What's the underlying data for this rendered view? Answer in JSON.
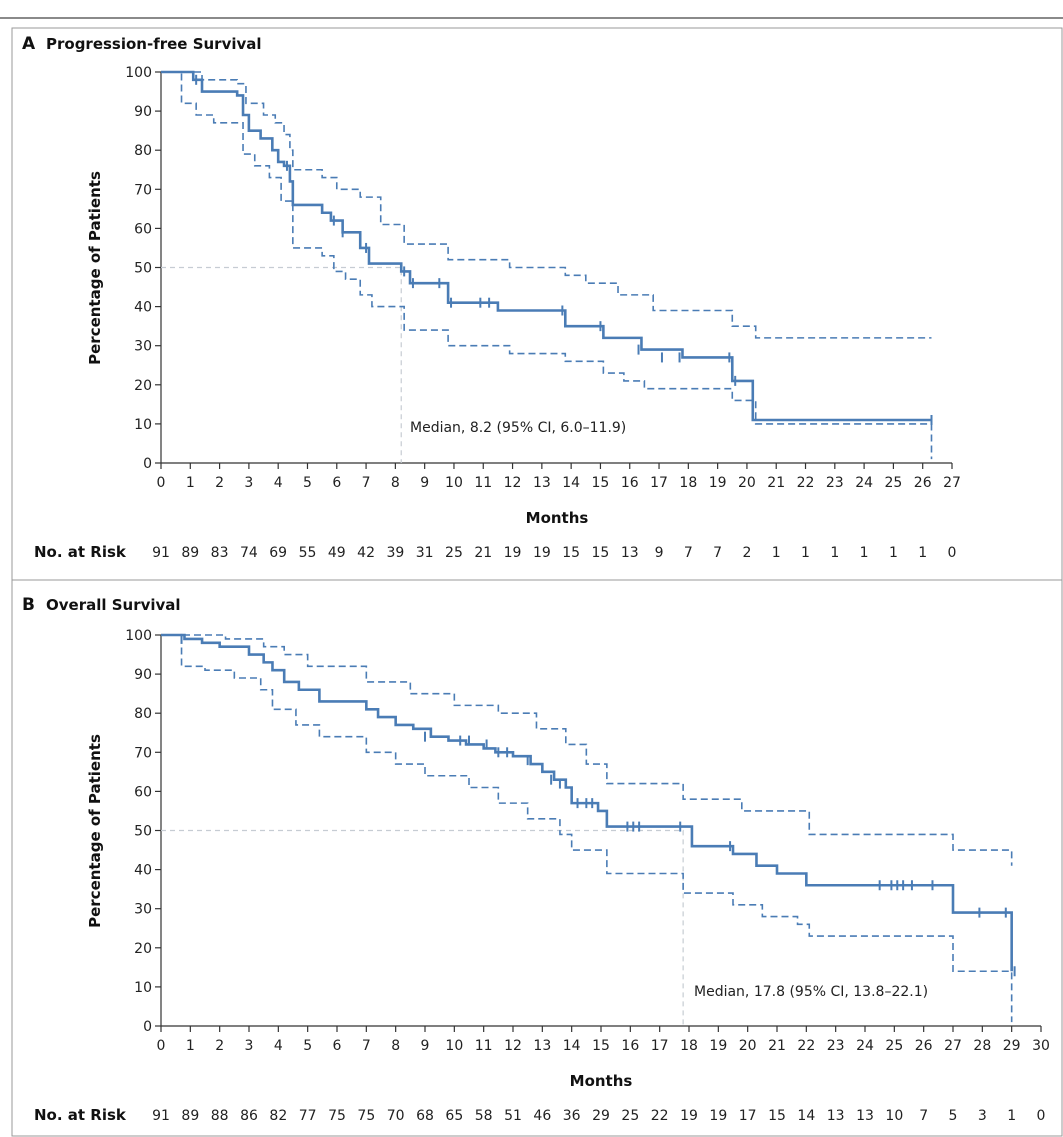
{
  "colors": {
    "curve": "#4a7cb5",
    "median_line": "#c6ccd3",
    "frame": "#333333",
    "panel_border": "#999999"
  },
  "chart_data": [
    {
      "type": "line",
      "panel_letter": "A",
      "title": "Progression-free Survival",
      "xlabel": "Months",
      "ylabel": "Percentage of Patients",
      "xlim": [
        0,
        27
      ],
      "ylim": [
        0,
        100
      ],
      "x_ticks": [
        "0",
        "1",
        "2",
        "3",
        "4",
        "5",
        "6",
        "7",
        "8",
        "9",
        "10",
        "11",
        "12",
        "13",
        "14",
        "15",
        "16",
        "17",
        "18",
        "19",
        "20",
        "21",
        "22",
        "23",
        "24",
        "25",
        "26",
        "27"
      ],
      "y_ticks": [
        "0",
        "10",
        "20",
        "30",
        "40",
        "50",
        "60",
        "70",
        "80",
        "90",
        "100"
      ],
      "risk_label": "No. at Risk",
      "at_risk": [
        "91",
        "89",
        "83",
        "74",
        "69",
        "55",
        "49",
        "42",
        "39",
        "31",
        "25",
        "21",
        "19",
        "19",
        "15",
        "15",
        "13",
        "9",
        "7",
        "7",
        "2",
        "1",
        "1",
        "1",
        "1",
        "1",
        "1",
        "0"
      ],
      "median": {
        "x": 8.2,
        "y": 50,
        "label": "Median, 8.2 (95% CI, 6.0–11.9)"
      },
      "series": [
        {
          "name": "Estimate",
          "style": "solid",
          "x": [
            0,
            1.1,
            1.4,
            2.6,
            2.8,
            3.0,
            3.4,
            3.8,
            4.0,
            4.2,
            4.4,
            4.5,
            5.5,
            5.8,
            6.2,
            6.8,
            7.1,
            8.2,
            8.5,
            9.8,
            11.5,
            13.8,
            15.1,
            16.4,
            17.8,
            19.5,
            20.2,
            26.3
          ],
          "y": [
            100,
            98,
            95,
            94,
            89,
            85,
            83,
            80,
            77,
            76,
            72,
            66,
            64,
            62,
            59,
            55,
            51,
            49,
            46,
            41,
            39,
            35,
            32,
            29,
            27,
            21,
            11,
            11
          ]
        },
        {
          "name": "95% CI upper",
          "style": "dashed",
          "x": [
            0,
            1.4,
            2.6,
            2.9,
            3.5,
            3.9,
            4.2,
            4.4,
            4.5,
            5.5,
            6.0,
            6.8,
            7.5,
            8.3,
            9.8,
            11.9,
            13.8,
            14.5,
            15.6,
            16.8,
            19.5,
            20.3,
            26.3
          ],
          "y": [
            100,
            98,
            97,
            92,
            89,
            87,
            84,
            80,
            75,
            73,
            70,
            68,
            61,
            56,
            52,
            50,
            48,
            46,
            43,
            39,
            35,
            32,
            32
          ]
        },
        {
          "name": "95% CI lower",
          "style": "dashed",
          "x": [
            0,
            0.7,
            1.2,
            1.8,
            2.8,
            3.2,
            3.7,
            4.1,
            4.5,
            5.5,
            5.9,
            6.3,
            6.8,
            7.2,
            8.3,
            9.8,
            11.9,
            13.8,
            15.1,
            15.8,
            16.5,
            19.5,
            20.3,
            26.3
          ],
          "y": [
            100,
            92,
            89,
            87,
            79,
            76,
            73,
            67,
            55,
            53,
            49,
            47,
            43,
            40,
            34,
            30,
            28,
            26,
            23,
            21,
            19,
            16,
            10,
            1
          ]
        }
      ],
      "censor_marks": [
        {
          "x": 1.2,
          "y": 98
        },
        {
          "x": 4.3,
          "y": 76
        },
        {
          "x": 5.9,
          "y": 62
        },
        {
          "x": 6.2,
          "y": 59
        },
        {
          "x": 7.0,
          "y": 55
        },
        {
          "x": 8.3,
          "y": 49
        },
        {
          "x": 8.6,
          "y": 46
        },
        {
          "x": 9.5,
          "y": 46
        },
        {
          "x": 9.9,
          "y": 41
        },
        {
          "x": 10.9,
          "y": 41
        },
        {
          "x": 11.2,
          "y": 41
        },
        {
          "x": 13.7,
          "y": 39
        },
        {
          "x": 15.0,
          "y": 35
        },
        {
          "x": 16.3,
          "y": 29
        },
        {
          "x": 17.1,
          "y": 27
        },
        {
          "x": 17.7,
          "y": 27
        },
        {
          "x": 19.4,
          "y": 27
        },
        {
          "x": 19.6,
          "y": 21
        },
        {
          "x": 26.3,
          "y": 11
        }
      ]
    },
    {
      "type": "line",
      "panel_letter": "B",
      "title": "Overall Survival",
      "xlabel": "Months",
      "ylabel": "Percentage of Patients",
      "xlim": [
        0,
        30
      ],
      "ylim": [
        0,
        100
      ],
      "x_ticks": [
        "0",
        "1",
        "2",
        "3",
        "4",
        "5",
        "6",
        "7",
        "8",
        "9",
        "10",
        "11",
        "12",
        "13",
        "14",
        "15",
        "16",
        "17",
        "18",
        "19",
        "20",
        "21",
        "22",
        "23",
        "24",
        "25",
        "26",
        "27",
        "28",
        "29",
        "30"
      ],
      "y_ticks": [
        "0",
        "10",
        "20",
        "30",
        "40",
        "50",
        "60",
        "70",
        "80",
        "90",
        "100"
      ],
      "risk_label": "No. at Risk",
      "at_risk": [
        "91",
        "89",
        "88",
        "86",
        "82",
        "77",
        "75",
        "75",
        "70",
        "68",
        "65",
        "58",
        "51",
        "46",
        "36",
        "29",
        "25",
        "22",
        "19",
        "19",
        "17",
        "15",
        "14",
        "13",
        "13",
        "10",
        "7",
        "5",
        "3",
        "1",
        "0"
      ],
      "median": {
        "x": 17.8,
        "y": 50,
        "label": "Median, 17.8 (95% CI, 13.8–22.1)"
      },
      "series": [
        {
          "name": "Estimate",
          "style": "solid",
          "x": [
            0,
            0.8,
            1.4,
            2.0,
            3.0,
            3.5,
            3.8,
            4.2,
            4.7,
            5.4,
            7.0,
            7.4,
            8.0,
            8.6,
            9.2,
            9.8,
            10.4,
            11.0,
            11.4,
            12.0,
            12.6,
            13.0,
            13.4,
            13.8,
            14.0,
            14.9,
            15.2,
            17.7,
            18.1,
            19.5,
            20.3,
            21.0,
            22.0,
            27.0,
            29.0
          ],
          "y": [
            100,
            99,
            98,
            97,
            95,
            93,
            91,
            88,
            86,
            83,
            81,
            79,
            77,
            76,
            74,
            73,
            72,
            71,
            70,
            69,
            67,
            65,
            63,
            61,
            57,
            55,
            51,
            51,
            46,
            44,
            41,
            39,
            36,
            29,
            14
          ]
        },
        {
          "name": "95% CI upper",
          "style": "dashed",
          "x": [
            0,
            2.2,
            3.5,
            4.2,
            5.0,
            7.0,
            8.5,
            10.0,
            11.5,
            12.8,
            13.8,
            14.5,
            15.2,
            17.8,
            19.8,
            22.1,
            27.0,
            29.0
          ],
          "y": [
            100,
            99,
            97,
            95,
            92,
            88,
            85,
            82,
            80,
            76,
            72,
            67,
            62,
            58,
            55,
            49,
            45,
            41
          ]
        },
        {
          "name": "95% CI lower",
          "style": "dashed",
          "x": [
            0,
            0.7,
            1.5,
            2.5,
            3.4,
            3.8,
            4.6,
            5.4,
            7.0,
            8.0,
            9.0,
            10.5,
            11.5,
            12.5,
            13.6,
            14.0,
            15.2,
            17.8,
            19.5,
            20.5,
            21.7,
            22.1,
            27.0,
            29.0
          ],
          "y": [
            100,
            92,
            91,
            89,
            86,
            81,
            77,
            74,
            70,
            67,
            64,
            61,
            57,
            53,
            49,
            45,
            39,
            34,
            31,
            28,
            26,
            23,
            14,
            1
          ]
        }
      ],
      "censor_marks": [
        {
          "x": 0.7,
          "y": 99
        },
        {
          "x": 9.0,
          "y": 74
        },
        {
          "x": 10.2,
          "y": 73
        },
        {
          "x": 10.5,
          "y": 73
        },
        {
          "x": 11.1,
          "y": 72
        },
        {
          "x": 11.5,
          "y": 70
        },
        {
          "x": 11.8,
          "y": 70
        },
        {
          "x": 12.5,
          "y": 68
        },
        {
          "x": 13.3,
          "y": 63
        },
        {
          "x": 13.6,
          "y": 62
        },
        {
          "x": 14.2,
          "y": 57
        },
        {
          "x": 14.5,
          "y": 57
        },
        {
          "x": 14.7,
          "y": 57
        },
        {
          "x": 15.9,
          "y": 51
        },
        {
          "x": 16.1,
          "y": 51
        },
        {
          "x": 16.3,
          "y": 51
        },
        {
          "x": 17.7,
          "y": 51
        },
        {
          "x": 19.4,
          "y": 46
        },
        {
          "x": 22.0,
          "y": 38
        },
        {
          "x": 24.5,
          "y": 36
        },
        {
          "x": 24.9,
          "y": 36
        },
        {
          "x": 25.1,
          "y": 36
        },
        {
          "x": 25.3,
          "y": 36
        },
        {
          "x": 25.6,
          "y": 36
        },
        {
          "x": 26.3,
          "y": 36
        },
        {
          "x": 27.9,
          "y": 29
        },
        {
          "x": 28.8,
          "y": 29
        },
        {
          "x": 29.1,
          "y": 14
        }
      ]
    }
  ]
}
